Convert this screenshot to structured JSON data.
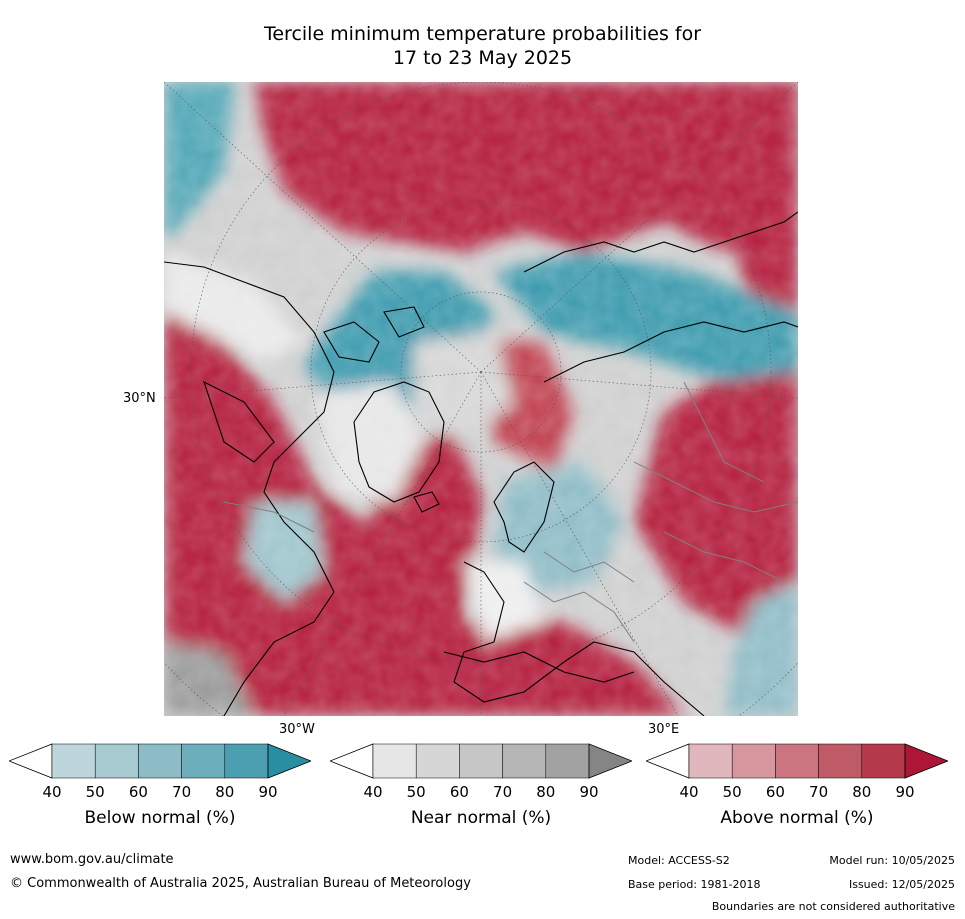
{
  "title": {
    "line1": "Tercile minimum temperature probabilities for",
    "line2": "17 to 23 May 2025"
  },
  "map": {
    "projection": "north-polar-stereographic",
    "labels": {
      "lat_30n": "30°N",
      "lon_30w": "30°W",
      "lon_30e": "30°E"
    },
    "colors": {
      "above_normal_dominant": "#b31b3a",
      "below_normal_dominant": "#3a9aad",
      "near_normal_dominant": "#bdbdbd",
      "coastline": "#000000",
      "borders": "#808080"
    }
  },
  "colorbars": [
    {
      "id": "below",
      "title": "Below normal (%)",
      "ticks": [
        "40",
        "50",
        "60",
        "70",
        "80",
        "90"
      ],
      "colors": [
        "#ffffff",
        "#bfd5dc",
        "#a7c9d0",
        "#8dbbc6",
        "#6caebb",
        "#4b9fb0",
        "#2a8ea3"
      ]
    },
    {
      "id": "near",
      "title": "Near normal (%)",
      "ticks": [
        "40",
        "50",
        "60",
        "70",
        "80",
        "90"
      ],
      "colors": [
        "#ffffff",
        "#e6e6e6",
        "#d6d6d6",
        "#c6c6c6",
        "#b5b5b5",
        "#a2a2a2",
        "#858585"
      ]
    },
    {
      "id": "above",
      "title": "Above normal (%)",
      "ticks": [
        "40",
        "50",
        "60",
        "70",
        "80",
        "90"
      ],
      "colors": [
        "#ffffff",
        "#e0b7bd",
        "#d6979f",
        "#ca7580",
        "#bf5a67",
        "#b53a4c",
        "#ad1636"
      ]
    }
  ],
  "footer": {
    "website": "www.bom.gov.au/climate",
    "copyright": "© Commonwealth of Australia 2025, Australian Bureau of Meteorology",
    "model": "Model: ACCESS-S2",
    "model_run": "Model run: 10/05/2025",
    "base_period": "Base period: 1981-2018",
    "issued": "Issued: 12/05/2025",
    "disclaimer": "Boundaries are not considered authoritative"
  }
}
